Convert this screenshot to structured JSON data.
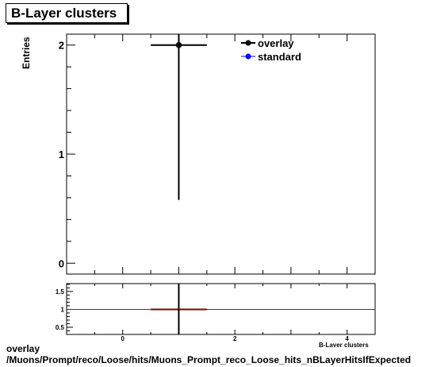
{
  "title": "B-Layer clusters",
  "ylabel": "Entries",
  "xlabel": "B-Layer clusters",
  "footer": {
    "line1": "overlay",
    "line2": "/Muons/Prompt/reco/Loose/hits/Muons_Prompt_reco_Loose_hits_nBLayerHitsIfExpected"
  },
  "colors": {
    "overlay": "#000000",
    "standard": "#0000ff",
    "ratio_line": "#cc0000",
    "ratio_marker": "#800000"
  },
  "chart_data": [
    {
      "type": "scatter",
      "title": "B-Layer clusters",
      "xlabel": "B-Layer clusters",
      "ylabel": "Entries",
      "xlim": [
        -1,
        4.5
      ],
      "ylim": [
        -0.1,
        2.1
      ],
      "yticks": [
        0,
        1,
        2
      ],
      "grid": false,
      "legend_placement": "top-right",
      "series": [
        {
          "name": "overlay",
          "points": [
            {
              "x": 1,
              "y": 2,
              "xerr": 0.5,
              "yerr_low": 1.42,
              "yerr_high": 2
            }
          ]
        },
        {
          "name": "standard",
          "points": []
        }
      ]
    },
    {
      "type": "scatter",
      "xlim": [
        -1,
        4.5
      ],
      "ylim": [
        0.3,
        1.72
      ],
      "xticks": [
        0,
        2,
        4
      ],
      "yticks": [
        0.5,
        1,
        1.5
      ],
      "reference_line": 1,
      "grid": false,
      "series": [
        {
          "points": [
            {
              "x": 1,
              "y": 1,
              "xerr": 0.5
            }
          ]
        }
      ]
    }
  ]
}
